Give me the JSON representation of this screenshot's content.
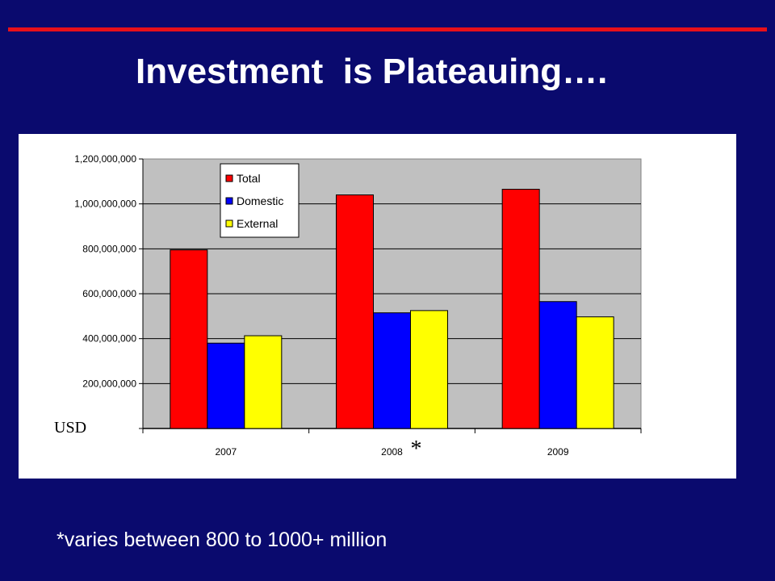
{
  "slide": {
    "title": "Investment  is Plateauing….",
    "footnote": "*varies between 800 to 1000+ million",
    "accent_color": "#e8101a",
    "background_color": "#0a0a6e"
  },
  "chart_data": {
    "type": "bar",
    "categories": [
      "2007",
      "2008",
      "2009"
    ],
    "series": [
      {
        "name": "Total",
        "color": "#ff0000",
        "values": [
          795000000,
          1040000000,
          1065000000
        ]
      },
      {
        "name": "Domestic",
        "color": "#0000ff",
        "values": [
          380000000,
          515000000,
          565000000
        ]
      },
      {
        "name": "External",
        "color": "#ffff00",
        "values": [
          413000000,
          525000000,
          497000000
        ]
      }
    ],
    "ylim": [
      0,
      1200000000
    ],
    "yticks": [
      0,
      200000000,
      400000000,
      600000000,
      800000000,
      1000000000,
      1200000000
    ],
    "ytick_labels": [
      "",
      "200,000,000",
      "400,000,000",
      "600,000,000",
      "800,000,000",
      "1,000,000,000",
      "1,200,000,000"
    ],
    "ylabel": "USD",
    "annotation": "*",
    "annotation_category": "2008",
    "legend_position": "top-left",
    "plot_background": "#c0c0c0",
    "grid": true
  }
}
